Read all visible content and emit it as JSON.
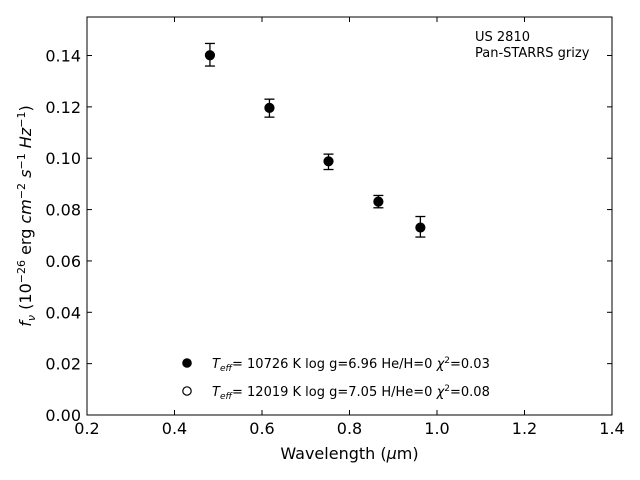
{
  "chart_data": {
    "type": "scatter",
    "xlabel": "Wavelength (μm)",
    "ylabel": "f_ν (10^-26 erg cm^-2 s^-1 Hz^-1)",
    "xlim": [
      0.2,
      1.4
    ],
    "ylim": [
      0.0,
      0.155
    ],
    "x_ticks": [
      0.2,
      0.4,
      0.6,
      0.8,
      1.0,
      1.2,
      1.4
    ],
    "y_ticks": [
      0.0,
      0.02,
      0.04,
      0.06,
      0.08,
      0.1,
      0.12,
      0.14
    ],
    "x_tick_labels": [
      "0.2",
      "0.4",
      "0.6",
      "0.8",
      "1.0",
      "1.2",
      "1.4"
    ],
    "y_tick_labels": [
      "0.00",
      "0.02",
      "0.04",
      "0.06",
      "0.08",
      "0.10",
      "0.12",
      "0.14"
    ],
    "grid": false,
    "annotation_lines": [
      "US 2810",
      "Pan-STARRS grizy"
    ],
    "series": [
      {
        "name": "T_eff= 10726 K  log g=6.96  He/H=0  χ²=0.03",
        "marker": "filled-circle",
        "color": "#000000",
        "x": [
          0.481,
          0.617,
          0.752,
          0.866,
          0.962
        ],
        "y": [
          0.1401,
          0.1196,
          0.0988,
          0.0831,
          0.073
        ]
      },
      {
        "name": "T_eff= 12019 K  log g=7.05  H/He=0  χ²=0.08",
        "marker": "open-circle",
        "color": "#000000",
        "x": [
          0.481,
          0.617,
          0.752,
          0.866,
          0.962
        ],
        "y": [
          0.1401,
          0.1196,
          0.0988,
          0.0831,
          0.073
        ]
      }
    ],
    "observations": {
      "x": [
        0.481,
        0.617,
        0.752,
        0.866,
        0.962
      ],
      "y": [
        0.1403,
        0.1195,
        0.0986,
        0.0831,
        0.0733
      ],
      "yerr": [
        0.0044,
        0.0035,
        0.003,
        0.0024,
        0.004
      ]
    },
    "legend_placement": "lower-center"
  }
}
